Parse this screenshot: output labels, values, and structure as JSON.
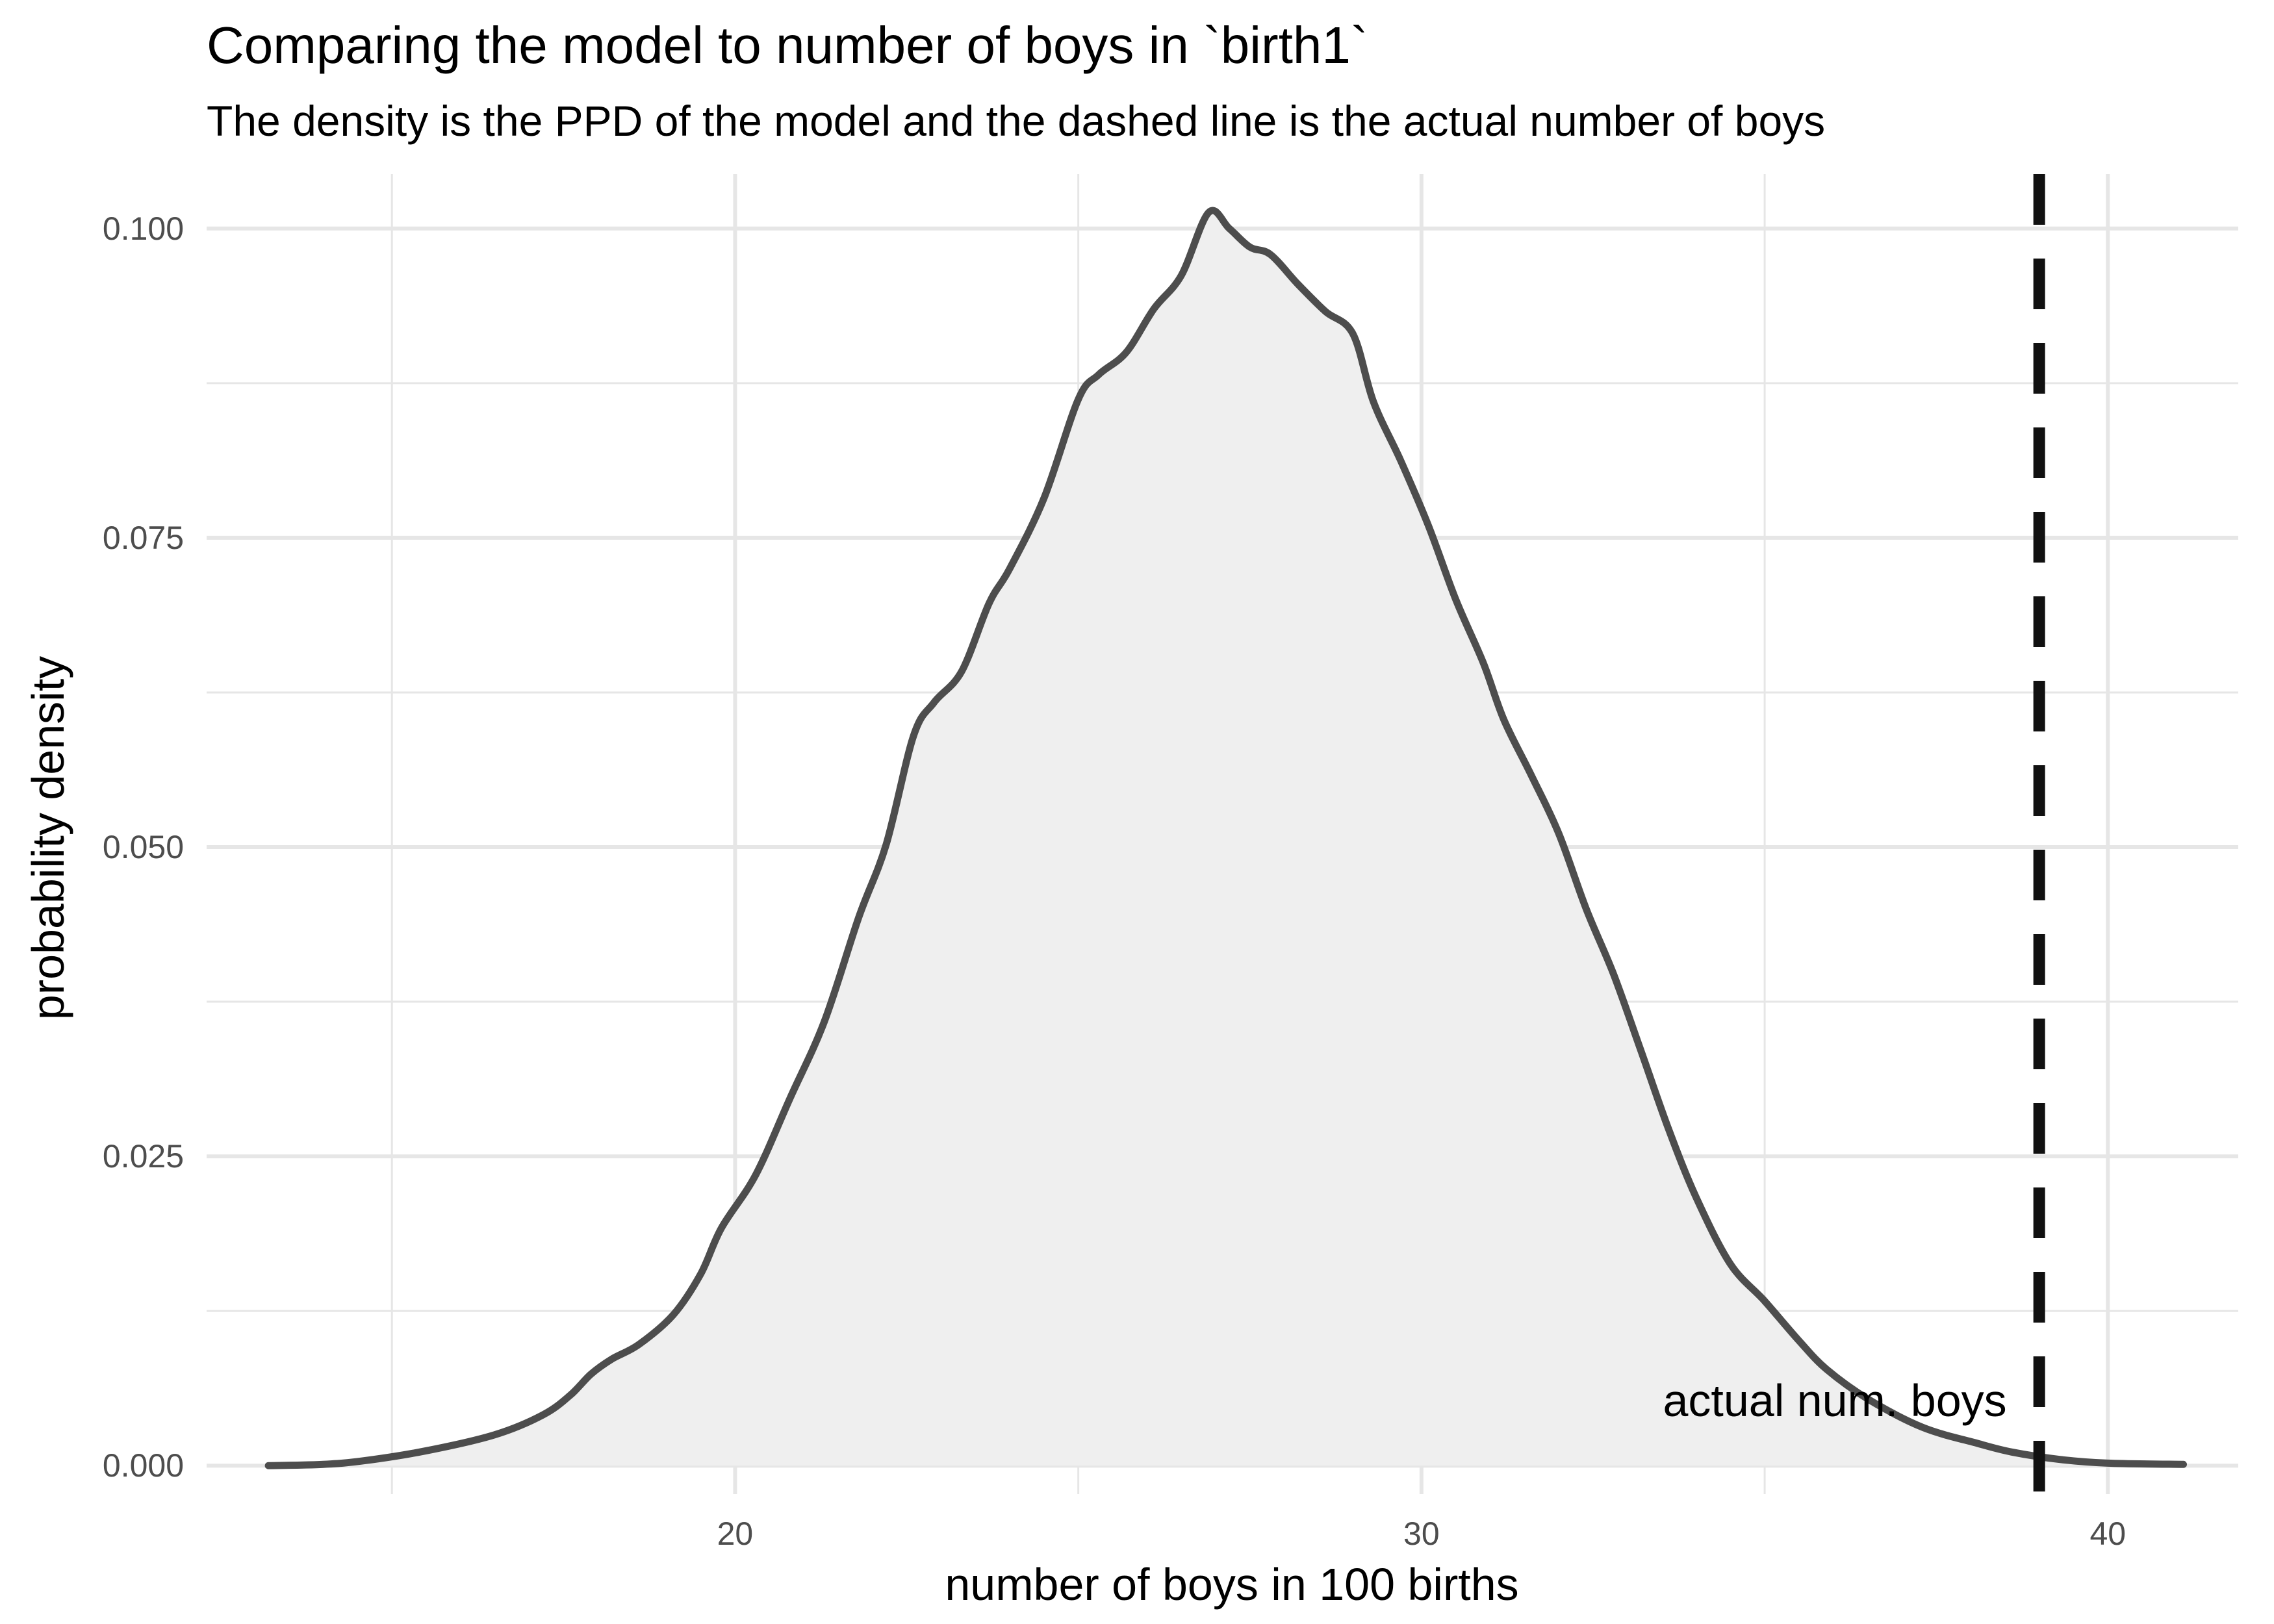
{
  "chart_data": {
    "type": "area",
    "title": "Comparing the model to number of boys in `birth1`",
    "subtitle": "The density is the PPD of the model and the dashed line is the actual number of boys",
    "xlabel": "number of boys in 100 births",
    "ylabel": "probability density",
    "xlim": [
      12.3,
      41.9
    ],
    "ylim": [
      -0.0023,
      0.1044
    ],
    "grid": true,
    "x_ticks": [
      20,
      30,
      40
    ],
    "x_tick_labels": [
      "20",
      "30",
      "40"
    ],
    "y_ticks": [
      0.0,
      0.025,
      0.05,
      0.075,
      0.1
    ],
    "y_tick_labels": [
      "0.000",
      "0.025",
      "0.050",
      "0.075",
      "0.100"
    ],
    "series": [
      {
        "x": [
          13.2,
          14.0,
          14.6,
          15.5,
          16.5,
          17.2,
          17.6,
          17.9,
          18.2,
          18.6,
          19.1,
          19.5,
          19.8,
          20.3,
          20.8,
          21.3,
          21.8,
          22.2,
          22.6,
          22.9,
          23.3,
          23.7,
          24.0,
          24.5,
          25.0,
          25.3,
          25.7,
          26.1,
          26.5,
          26.9,
          27.2,
          27.5,
          27.8,
          28.2,
          28.6,
          29.0,
          29.3,
          29.7,
          30.1,
          30.5,
          30.9,
          31.2,
          31.6,
          32.0,
          32.4,
          32.8,
          33.2,
          33.6,
          34.0,
          34.5,
          35.0,
          35.5,
          35.9,
          36.5,
          37.3,
          38.1,
          38.6,
          39.3,
          40.0,
          41.1
        ],
        "y": [
          0.0,
          0.0001,
          0.0004,
          0.0012,
          0.0025,
          0.0041,
          0.0057,
          0.0074,
          0.0086,
          0.0098,
          0.0122,
          0.0155,
          0.0192,
          0.0235,
          0.0297,
          0.0359,
          0.0443,
          0.0502,
          0.059,
          0.0617,
          0.0642,
          0.0697,
          0.0725,
          0.0782,
          0.0862,
          0.0882,
          0.09,
          0.0935,
          0.0962,
          0.1013,
          0.1,
          0.0985,
          0.0979,
          0.0955,
          0.0933,
          0.0915,
          0.086,
          0.0812,
          0.076,
          0.07,
          0.0649,
          0.0603,
          0.0558,
          0.0511,
          0.045,
          0.0397,
          0.0335,
          0.0272,
          0.0217,
          0.0163,
          0.0133,
          0.0101,
          0.0078,
          0.0054,
          0.0031,
          0.0018,
          0.0011,
          0.0005,
          0.0002,
          0.0001
        ]
      }
    ],
    "reference_line": {
      "x": 39.0,
      "style": "dashed",
      "label": "actual num. boys"
    },
    "colors": {
      "area_fill": "#efefef",
      "curve": "#4d4d4d",
      "reference_line": "#111111",
      "grid": "#e6e6e6",
      "tick_label": "#4d4d4d"
    }
  }
}
